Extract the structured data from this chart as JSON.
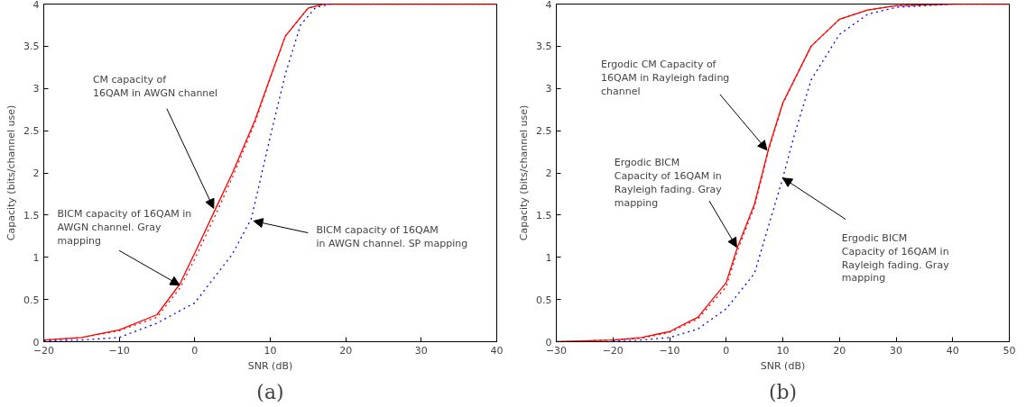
{
  "chart_data": [
    {
      "type": "line",
      "title": "(a)",
      "xlabel": "SNR (dB)",
      "ylabel": "Capacity (bits/channel use)",
      "xlim": [
        -20,
        40
      ],
      "xticks": [
        -20,
        -10,
        0,
        10,
        20,
        30,
        40
      ],
      "ylim": [
        0,
        4
      ],
      "yticks": [
        0,
        0.5,
        1,
        1.5,
        2,
        2.5,
        3,
        3.5,
        4
      ],
      "grid": false,
      "series": [
        {
          "color": "#ff0000",
          "line_style": "solid",
          "x": [
            -20,
            -15,
            -10,
            -5,
            -2,
            0,
            3,
            5,
            8,
            10,
            12,
            15,
            17,
            20,
            30,
            40
          ],
          "values": [
            0.02,
            0.05,
            0.14,
            0.32,
            0.68,
            1.05,
            1.62,
            2.0,
            2.63,
            3.13,
            3.62,
            3.95,
            4.0,
            4.0,
            4.0,
            4.0
          ]
        },
        {
          "color": "#ff0000",
          "line_style": "dotted",
          "x": [
            -20,
            -15,
            -10,
            -5,
            -2,
            0,
            3,
            5,
            8,
            10,
            12,
            15,
            17,
            20,
            30,
            40
          ],
          "values": [
            0.02,
            0.05,
            0.13,
            0.29,
            0.63,
            0.98,
            1.55,
            1.95,
            2.6,
            3.12,
            3.62,
            3.95,
            4.0,
            4.0,
            4.0,
            4.0
          ]
        },
        {
          "color": "#0000ff",
          "line_style": "dotted",
          "x": [
            -20,
            -15,
            -10,
            -5,
            0,
            5,
            7.5,
            10,
            12,
            14,
            16,
            18
          ],
          "values": [
            0.01,
            0.02,
            0.05,
            0.22,
            0.46,
            1.04,
            1.46,
            2.43,
            3.17,
            3.75,
            3.96,
            4.0
          ]
        }
      ],
      "annotations": [
        {
          "text": "CM capacity of\n16QAM in AWGN channel",
          "x": 2.5,
          "y": 1.58
        },
        {
          "text": "BICM capacity of 16QAM in\nAWGN channel. Gray\nmapping",
          "x": -2,
          "y": 0.67
        },
        {
          "text": "BICM capacity of 16QAM\nin AWGN channel. SP mapping",
          "x": 7.8,
          "y": 1.43
        }
      ]
    },
    {
      "type": "line",
      "title": "(b)",
      "xlabel": "SNR (dB)",
      "ylabel": "Capacity (bits/channel use)",
      "xlim": [
        -30,
        50
      ],
      "xticks": [
        -30,
        -20,
        -10,
        0,
        10,
        20,
        30,
        40,
        50
      ],
      "ylim": [
        0,
        4
      ],
      "yticks": [
        0,
        0.5,
        1,
        1.5,
        2,
        2.5,
        3,
        3.5,
        4
      ],
      "grid": false,
      "series": [
        {
          "color": "#ff0000",
          "line_style": "solid",
          "x": [
            -30,
            -20,
            -15,
            -10,
            -5,
            0,
            2,
            5,
            7.5,
            10,
            15,
            20,
            25,
            30,
            40,
            50
          ],
          "values": [
            0.0,
            0.02,
            0.05,
            0.12,
            0.29,
            0.7,
            1.12,
            1.63,
            2.29,
            2.83,
            3.5,
            3.82,
            3.93,
            3.98,
            4.0,
            4.0
          ]
        },
        {
          "color": "#ff0000",
          "line_style": "dotted",
          "x": [
            -30,
            -20,
            -15,
            -10,
            -5,
            0,
            2,
            5,
            7.5,
            10,
            15,
            20,
            25,
            30,
            40,
            50
          ],
          "values": [
            0.0,
            0.02,
            0.04,
            0.11,
            0.27,
            0.65,
            1.08,
            1.6,
            2.27,
            2.82,
            3.5,
            3.82,
            3.93,
            3.98,
            4.0,
            4.0
          ]
        },
        {
          "color": "#0000ff",
          "line_style": "dotted",
          "x": [
            -20,
            -15,
            -10,
            -5,
            0,
            5,
            10,
            12,
            15,
            20,
            25,
            30,
            40
          ],
          "values": [
            0.01,
            0.02,
            0.05,
            0.15,
            0.39,
            0.81,
            1.94,
            2.44,
            3.1,
            3.64,
            3.88,
            3.96,
            4.0
          ]
        }
      ],
      "annotations": [
        {
          "text": "Ergodic CM Capacity of\n16QAM in Rayleigh fading\nchannel",
          "x": 7.2,
          "y": 2.27
        },
        {
          "text": "Ergodic BICM\nCapacity of 16QAM in\nRayleigh fading. Gray\nmapping",
          "x": 1.85,
          "y": 1.12
        },
        {
          "text": "Ergodic BICM\nCapacity of 16QAM in\nRayleigh fading. Gray\nmapping",
          "x": 10,
          "y": 1.94
        }
      ]
    }
  ]
}
